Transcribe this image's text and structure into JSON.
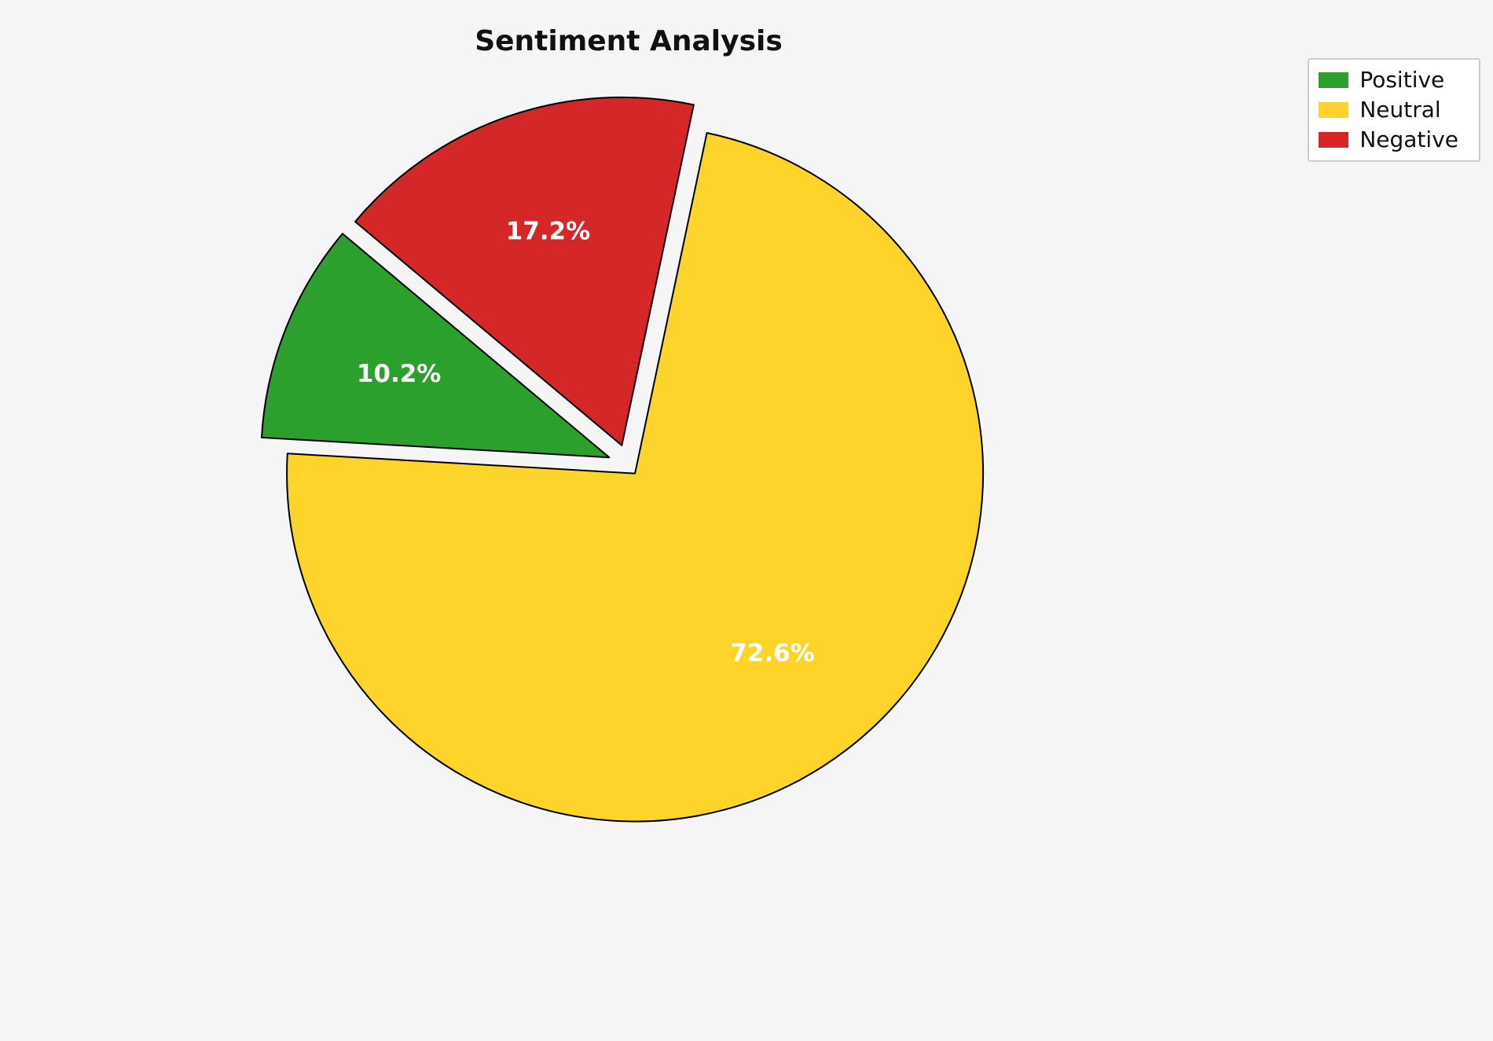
{
  "page": {
    "background": "#f5f5f5"
  },
  "title": "Sentiment Analysis",
  "chart_data": {
    "type": "pie",
    "title": "Sentiment Analysis",
    "labels": [
      "Positive",
      "Neutral",
      "Negative"
    ],
    "values": [
      10.2,
      72.6,
      17.2
    ],
    "pct_labels": [
      "10.2%",
      "72.6%",
      "17.2%"
    ],
    "colors": [
      "#2ca02c",
      "#ffd42a",
      "#d62728"
    ],
    "edge_color": "#000000",
    "pct_label_color": "#ffffff",
    "start_angle": 140,
    "direction": "counterclockwise",
    "explode": [
      0.06,
      0.03,
      0.06
    ],
    "legend": {
      "position": "upper right",
      "items": [
        {
          "label": "Positive",
          "color": "#2ca02c"
        },
        {
          "label": "Neutral",
          "color": "#ffd42a"
        },
        {
          "label": "Negative",
          "color": "#d62728"
        }
      ]
    }
  }
}
